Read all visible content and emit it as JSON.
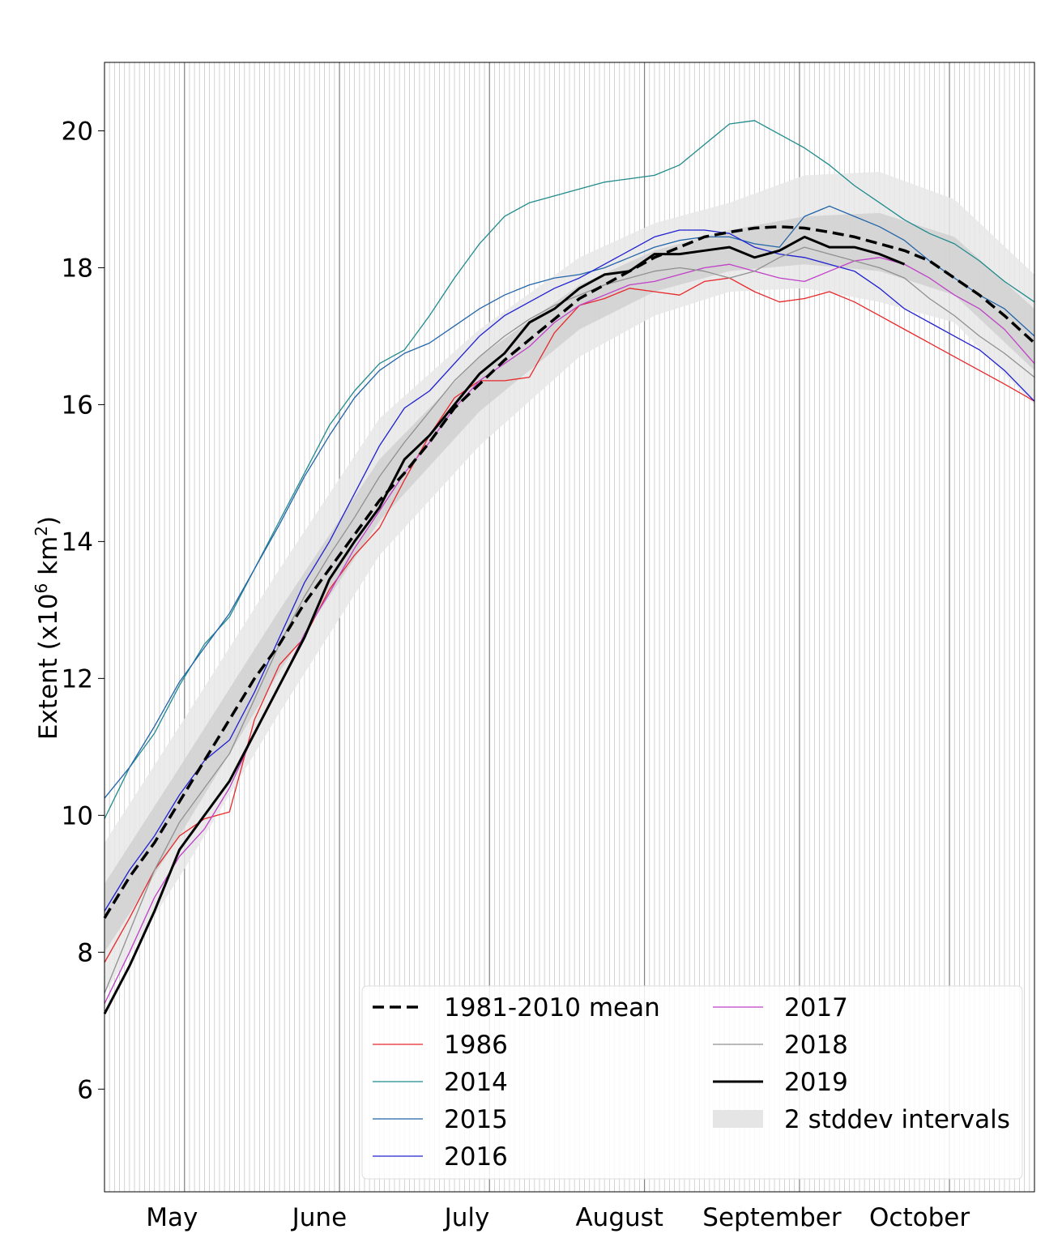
{
  "chart_data": {
    "type": "line",
    "title": "",
    "xlabel": "",
    "ylabel_main": "Extent (x10",
    "ylabel_sup1": "6",
    "ylabel_mid": " km",
    "ylabel_sup2": "2",
    "ylabel_end": ")",
    "ylim": [
      4.5,
      21
    ],
    "yticks": [
      6,
      8,
      10,
      12,
      14,
      16,
      18,
      20
    ],
    "x_unit": "day of year",
    "xlim": [
      105,
      291
    ],
    "month_labels": [
      {
        "label": "May",
        "center_doy": 118.5
      },
      {
        "label": "June",
        "center_doy": 148
      },
      {
        "label": "July",
        "center_doy": 177.5
      },
      {
        "label": "August",
        "center_doy": 208
      },
      {
        "label": "September",
        "center_doy": 238.5
      },
      {
        "label": "October",
        "center_doy": 268
      }
    ],
    "month_starts": [
      121,
      152,
      182,
      213,
      244,
      274
    ],
    "daily_gridlines": true,
    "legend_position": "lower-right",
    "stddev_bands": {
      "x": [
        105,
        120,
        140,
        160,
        180,
        200,
        215,
        230,
        245,
        260,
        275,
        291
      ],
      "inner_lo": [
        8.0,
        9.7,
        12.1,
        14.3,
        15.9,
        17.1,
        17.65,
        17.95,
        18.05,
        17.95,
        17.6,
        16.5
      ],
      "inner_hi": [
        9.0,
        10.7,
        13.0,
        15.2,
        16.7,
        17.75,
        18.25,
        18.55,
        18.75,
        18.8,
        18.45,
        17.4
      ],
      "outer_lo": [
        7.4,
        9.1,
        11.5,
        13.8,
        15.4,
        16.7,
        17.3,
        17.65,
        17.7,
        17.5,
        17.2,
        16.0
      ],
      "outer_hi": [
        9.6,
        11.3,
        13.6,
        15.8,
        17.1,
        18.15,
        18.65,
        18.95,
        19.35,
        19.4,
        19.0,
        17.9
      ]
    },
    "series": [
      {
        "name": "1981-2010 mean",
        "color": "#000000",
        "style": "dashed",
        "width": 3.5,
        "x": [
          105,
          110,
          115,
          120,
          125,
          130,
          135,
          140,
          145,
          150,
          155,
          160,
          165,
          170,
          175,
          180,
          185,
          190,
          195,
          200,
          205,
          210,
          215,
          220,
          225,
          230,
          235,
          240,
          245,
          250,
          255,
          260,
          265,
          270,
          275,
          280,
          285,
          291
        ],
        "y": [
          8.5,
          9.1,
          9.6,
          10.2,
          10.8,
          11.4,
          12.0,
          12.5,
          13.1,
          13.6,
          14.1,
          14.6,
          15.0,
          15.45,
          15.95,
          16.3,
          16.65,
          16.95,
          17.25,
          17.55,
          17.75,
          17.95,
          18.15,
          18.3,
          18.45,
          18.52,
          18.58,
          18.6,
          18.58,
          18.52,
          18.45,
          18.35,
          18.25,
          18.1,
          17.85,
          17.6,
          17.3,
          16.9
        ]
      },
      {
        "name": "1986",
        "color": "#e8282b",
        "style": "solid",
        "width": 1.3,
        "x": [
          105,
          110,
          115,
          120,
          125,
          130,
          135,
          140,
          145,
          150,
          155,
          160,
          165,
          170,
          175,
          180,
          185,
          190,
          195,
          200,
          205,
          210,
          215,
          220,
          225,
          230,
          235,
          240,
          245,
          250,
          255,
          260,
          265,
          270,
          275,
          280,
          285,
          291
        ],
        "y": [
          7.85,
          8.5,
          9.2,
          9.7,
          9.95,
          10.05,
          11.4,
          12.2,
          12.6,
          13.3,
          13.8,
          14.2,
          14.9,
          15.55,
          16.1,
          16.35,
          16.35,
          16.4,
          17.05,
          17.45,
          17.55,
          17.7,
          17.65,
          17.6,
          17.8,
          17.85,
          17.65,
          17.5,
          17.55,
          17.65,
          17.5,
          17.3,
          17.1,
          16.9,
          16.7,
          16.5,
          16.3,
          16.05
        ]
      },
      {
        "name": "2014",
        "color": "#1f8a8c",
        "style": "solid",
        "width": 1.3,
        "x": [
          105,
          110,
          115,
          120,
          125,
          130,
          135,
          140,
          145,
          150,
          155,
          160,
          165,
          170,
          175,
          180,
          185,
          190,
          195,
          200,
          205,
          210,
          215,
          220,
          225,
          230,
          235,
          240,
          245,
          250,
          255,
          260,
          265,
          270,
          275,
          280,
          285,
          291
        ],
        "y": [
          9.95,
          10.7,
          11.2,
          11.9,
          12.5,
          12.9,
          13.6,
          14.3,
          15.0,
          15.7,
          16.2,
          16.6,
          16.8,
          17.3,
          17.85,
          18.35,
          18.75,
          18.95,
          19.05,
          19.15,
          19.25,
          19.3,
          19.35,
          19.5,
          19.8,
          20.1,
          20.15,
          19.95,
          19.75,
          19.5,
          19.2,
          18.95,
          18.7,
          18.5,
          18.35,
          18.1,
          17.8,
          17.5
        ]
      },
      {
        "name": "2015",
        "color": "#2264a8",
        "style": "solid",
        "width": 1.3,
        "x": [
          105,
          110,
          115,
          120,
          125,
          130,
          135,
          140,
          145,
          150,
          155,
          160,
          165,
          170,
          175,
          180,
          185,
          190,
          195,
          200,
          205,
          210,
          215,
          220,
          225,
          230,
          235,
          240,
          245,
          250,
          255,
          260,
          265,
          270,
          275,
          280,
          285,
          291
        ],
        "y": [
          10.25,
          10.7,
          11.3,
          11.95,
          12.45,
          12.95,
          13.6,
          14.25,
          14.95,
          15.55,
          16.1,
          16.5,
          16.75,
          16.9,
          17.15,
          17.4,
          17.6,
          17.75,
          17.85,
          17.9,
          18.0,
          18.15,
          18.3,
          18.4,
          18.45,
          18.45,
          18.35,
          18.3,
          18.75,
          18.9,
          18.75,
          18.6,
          18.4,
          18.1,
          17.85,
          17.6,
          17.4,
          17.0
        ]
      },
      {
        "name": "2016",
        "color": "#2020d0",
        "style": "solid",
        "width": 1.3,
        "x": [
          105,
          110,
          115,
          120,
          125,
          130,
          135,
          140,
          145,
          150,
          155,
          160,
          165,
          170,
          175,
          180,
          185,
          190,
          195,
          200,
          205,
          210,
          215,
          220,
          225,
          230,
          235,
          240,
          245,
          250,
          255,
          260,
          265,
          270,
          275,
          280,
          285,
          291
        ],
        "y": [
          8.6,
          9.2,
          9.7,
          10.3,
          10.8,
          11.1,
          11.8,
          12.6,
          13.4,
          14.0,
          14.7,
          15.4,
          15.95,
          16.2,
          16.6,
          17.0,
          17.3,
          17.5,
          17.7,
          17.85,
          18.05,
          18.25,
          18.45,
          18.55,
          18.55,
          18.5,
          18.3,
          18.2,
          18.15,
          18.05,
          17.95,
          17.7,
          17.4,
          17.2,
          17.0,
          16.8,
          16.5,
          16.05
        ]
      },
      {
        "name": "2017",
        "color": "#c040c8",
        "style": "solid",
        "width": 1.3,
        "x": [
          105,
          110,
          115,
          120,
          125,
          130,
          135,
          140,
          145,
          150,
          155,
          160,
          165,
          170,
          175,
          180,
          185,
          190,
          195,
          200,
          205,
          210,
          215,
          220,
          225,
          230,
          235,
          240,
          245,
          250,
          255,
          260,
          265,
          270,
          275,
          280,
          285,
          291
        ],
        "y": [
          7.25,
          8.0,
          8.8,
          9.4,
          9.8,
          10.4,
          11.2,
          11.9,
          12.65,
          13.25,
          13.9,
          14.45,
          15.0,
          15.45,
          15.95,
          16.35,
          16.6,
          16.85,
          17.2,
          17.45,
          17.6,
          17.75,
          17.8,
          17.9,
          18.0,
          18.05,
          17.95,
          17.85,
          17.8,
          17.95,
          18.1,
          18.15,
          18.05,
          17.85,
          17.6,
          17.4,
          17.1,
          16.6
        ]
      },
      {
        "name": "2018",
        "color": "#909090",
        "style": "solid",
        "width": 1.3,
        "x": [
          105,
          110,
          115,
          120,
          125,
          130,
          135,
          140,
          145,
          150,
          155,
          160,
          165,
          170,
          175,
          180,
          185,
          190,
          195,
          200,
          205,
          210,
          215,
          220,
          225,
          230,
          235,
          240,
          245,
          250,
          255,
          260,
          265,
          270,
          275,
          280,
          285,
          291
        ],
        "y": [
          7.4,
          8.3,
          9.2,
          9.9,
          10.4,
          10.9,
          11.7,
          12.5,
          13.2,
          13.8,
          14.35,
          14.95,
          15.45,
          15.9,
          16.35,
          16.7,
          17.0,
          17.25,
          17.45,
          17.6,
          17.75,
          17.85,
          17.95,
          18.0,
          17.95,
          17.85,
          17.95,
          18.15,
          18.3,
          18.2,
          18.1,
          18.0,
          17.85,
          17.55,
          17.3,
          17.0,
          16.75,
          16.4
        ]
      },
      {
        "name": "2019",
        "color": "#000000",
        "style": "solid",
        "width": 3,
        "x": [
          105,
          110,
          115,
          120,
          125,
          130,
          135,
          140,
          145,
          150,
          155,
          160,
          165,
          170,
          175,
          180,
          185,
          190,
          195,
          200,
          205,
          210,
          215,
          220,
          225,
          230,
          235,
          240,
          245,
          250,
          255,
          260,
          265
        ],
        "y": [
          7.1,
          7.8,
          8.6,
          9.5,
          10.0,
          10.5,
          11.2,
          11.9,
          12.6,
          13.45,
          14.0,
          14.5,
          15.2,
          15.55,
          16.0,
          16.45,
          16.75,
          17.2,
          17.4,
          17.7,
          17.9,
          17.95,
          18.2,
          18.2,
          18.25,
          18.3,
          18.15,
          18.25,
          18.45,
          18.3,
          18.3,
          18.2,
          18.05
        ]
      }
    ],
    "legend": {
      "entries": [
        {
          "label": "1981-2010 mean",
          "kind": "line",
          "series": 0
        },
        {
          "label": "1986",
          "kind": "line",
          "series": 1
        },
        {
          "label": "2014",
          "kind": "line",
          "series": 2
        },
        {
          "label": "2015",
          "kind": "line",
          "series": 3
        },
        {
          "label": "2016",
          "kind": "line",
          "series": 4
        },
        {
          "label": "2017",
          "kind": "line",
          "series": 5
        },
        {
          "label": "2018",
          "kind": "line",
          "series": 6
        },
        {
          "label": "2019",
          "kind": "line",
          "series": 7
        },
        {
          "label": "2 stddev intervals",
          "kind": "patch",
          "color": "#e5e5e5"
        }
      ]
    },
    "colors": {
      "band_outer": "#e8e8e8",
      "band_inner": "#cdcdcd",
      "daily_grid": "#c8c8c8",
      "month_grid": "#808080"
    }
  }
}
